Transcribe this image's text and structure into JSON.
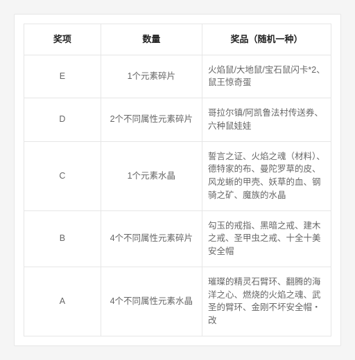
{
  "table": {
    "columns": [
      "奖项",
      "数量",
      "奖品（随机一种）"
    ],
    "rows": [
      {
        "level": "E",
        "qty": "1个元素碎片",
        "prize": "火焰鼠/大地鼠/宝石鼠闪卡*2、鼠王惊奇蛋"
      },
      {
        "level": "D",
        "qty": "2个不同属性元素碎片",
        "prize": "哥拉尔镇/阿凯鲁法村传送券、六种鼠娃娃"
      },
      {
        "level": "C",
        "qty": "1个元素水晶",
        "prize": "誓言之证、火焰之魂（材料）、德特家的布、曼陀罗草的皮、风龙蜥的甲壳、妖草的血、钢骑之矿、魔族的水晶"
      },
      {
        "level": "B",
        "qty": "4个不同属性元素碎片",
        "prize": "勾玉的戒指、黑暗之戒、建木之戒、圣甲虫之戒、十全十美安全帽"
      },
      {
        "level": "A",
        "qty": "4个不同属性元素水晶",
        "prize": "璀璨的精灵石臂环、翻腾的海洋之心、燃烧的火焰之魂、武圣的臂环、金刚不坏安全帽・改"
      }
    ]
  },
  "styling": {
    "background_page": "#f5f5f5",
    "background_card": "#ffffff",
    "border_color": "#e6e6e6",
    "header_text_color": "#222222",
    "body_text_color": "#666666",
    "font_family": "Microsoft YaHei",
    "header_font_size_pt": 10,
    "body_font_size_pt": 9.5,
    "col_widths_pct": [
      25,
      33,
      42
    ]
  }
}
